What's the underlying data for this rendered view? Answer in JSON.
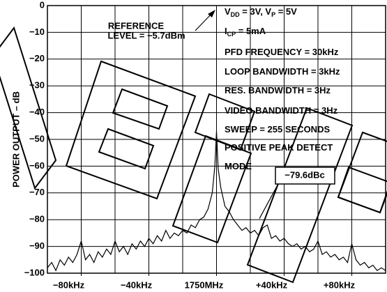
{
  "chart_data": {
    "type": "line",
    "y_label": "POWER OUTPUT – dB",
    "xlim": [
      -100,
      100
    ],
    "ylim": [
      -100,
      0
    ],
    "xticks": [
      {
        "value": -80,
        "label": "−80kHz"
      },
      {
        "value": -40,
        "label": "−40kHz"
      },
      {
        "value": 0,
        "label": "1750MHz"
      },
      {
        "value": 40,
        "label": "+40kHz"
      },
      {
        "value": 80,
        "label": "+80kHz"
      }
    ],
    "yticks": [
      0,
      {
        "value": -10,
        "label": "−10"
      },
      {
        "value": -20,
        "label": "−20"
      },
      {
        "value": -30,
        "label": "−30"
      },
      {
        "value": -40,
        "label": "−40"
      },
      {
        "value": -50,
        "label": "−50"
      },
      {
        "value": -60,
        "label": "−60"
      },
      {
        "value": -70,
        "label": "−70"
      },
      {
        "value": -80,
        "label": "−80"
      },
      {
        "value": -90,
        "label": "−90"
      },
      {
        "value": {
          "value": -100,
          "label": "−100"
        },
        "label": "−100"
      }
    ],
    "grid": true,
    "series": [
      {
        "color": "#000000",
        "x": [
          -100,
          -97.5,
          -95,
          -92.5,
          -90,
          -87.5,
          -85,
          -82.5,
          -80,
          -77.5,
          -75,
          -72.5,
          -70,
          -67.5,
          -65,
          -62.5,
          -60,
          -57.5,
          -55,
          -52.5,
          -50,
          -47.5,
          -45,
          -42.5,
          -40,
          -37.5,
          -35,
          -32.5,
          -30,
          -27.5,
          -25,
          -22.5,
          -20,
          -17.5,
          -15,
          -12.5,
          -10,
          -7.5,
          -5,
          -2.5,
          -1,
          0,
          1,
          2.5,
          5,
          7.5,
          10,
          12.5,
          15,
          17.5,
          20,
          22.5,
          25,
          27.5,
          30,
          32.5,
          35,
          37.5,
          40,
          42.5,
          45,
          47.5,
          50,
          52.5,
          55,
          57.5,
          60,
          62.5,
          65,
          67.5,
          70,
          72.5,
          75,
          77.5,
          80,
          82.5,
          85,
          87.5,
          90,
          92.5,
          95,
          97.5,
          100
        ],
        "values": [
          -98,
          -96,
          -99,
          -95,
          -97,
          -94,
          -96,
          -93,
          -88,
          -95,
          -93,
          -96,
          -92,
          -94,
          -91,
          -93,
          -88,
          -92,
          -90,
          -93,
          -89,
          -91,
          -88,
          -90,
          -87,
          -89,
          -86,
          -88,
          -84,
          -87,
          -85,
          -86,
          -84,
          -85,
          -82,
          -83,
          -80,
          -79,
          -76,
          -70,
          -60,
          -47,
          -61,
          -68,
          -75,
          -77,
          -80,
          -82,
          -84,
          -83,
          -85,
          -84,
          -86,
          -83,
          -82,
          -87,
          -86,
          -88,
          -87,
          -89,
          -90,
          -89,
          -91,
          -90,
          -92,
          -91,
          -88,
          -93,
          -92,
          -94,
          -93,
          -95,
          -94,
          -96,
          -89,
          -95,
          -97,
          -96,
          -98,
          -97,
          -99,
          -98,
          -99
        ]
      }
    ],
    "reference_note": [
      "REFERENCE",
      "LEVEL = −5.7dBm"
    ],
    "marker_annotation": {
      "value": -79.6,
      "label": "−79.6dBc"
    },
    "conditions": [
      [
        {
          "t": "V"
        },
        {
          "sub": "DD"
        },
        {
          "t": " = 3V, V"
        },
        {
          "sub": "P"
        },
        {
          "t": " = 5V"
        }
      ],
      [
        {
          "t": "I"
        },
        {
          "sub": "CP"
        },
        {
          "t": " = 5mA"
        }
      ],
      [
        {
          "t": "PFD FREQUENCY = 30kHz"
        }
      ],
      [
        {
          "t": "LOOP BANDWIDTH = 3kHz"
        }
      ],
      [
        {
          "t": "RES. BANDWIDTH = 3Hz"
        }
      ],
      [
        {
          "t": "VIDEO BANDWIDTH = 3Hz"
        }
      ],
      [
        {
          "t": "SWEEP = 255 SECONDS"
        }
      ],
      [
        {
          "t": "POSITIVE PEAK DETECT"
        }
      ],
      [
        {
          "t": "MODE"
        }
      ]
    ]
  }
}
